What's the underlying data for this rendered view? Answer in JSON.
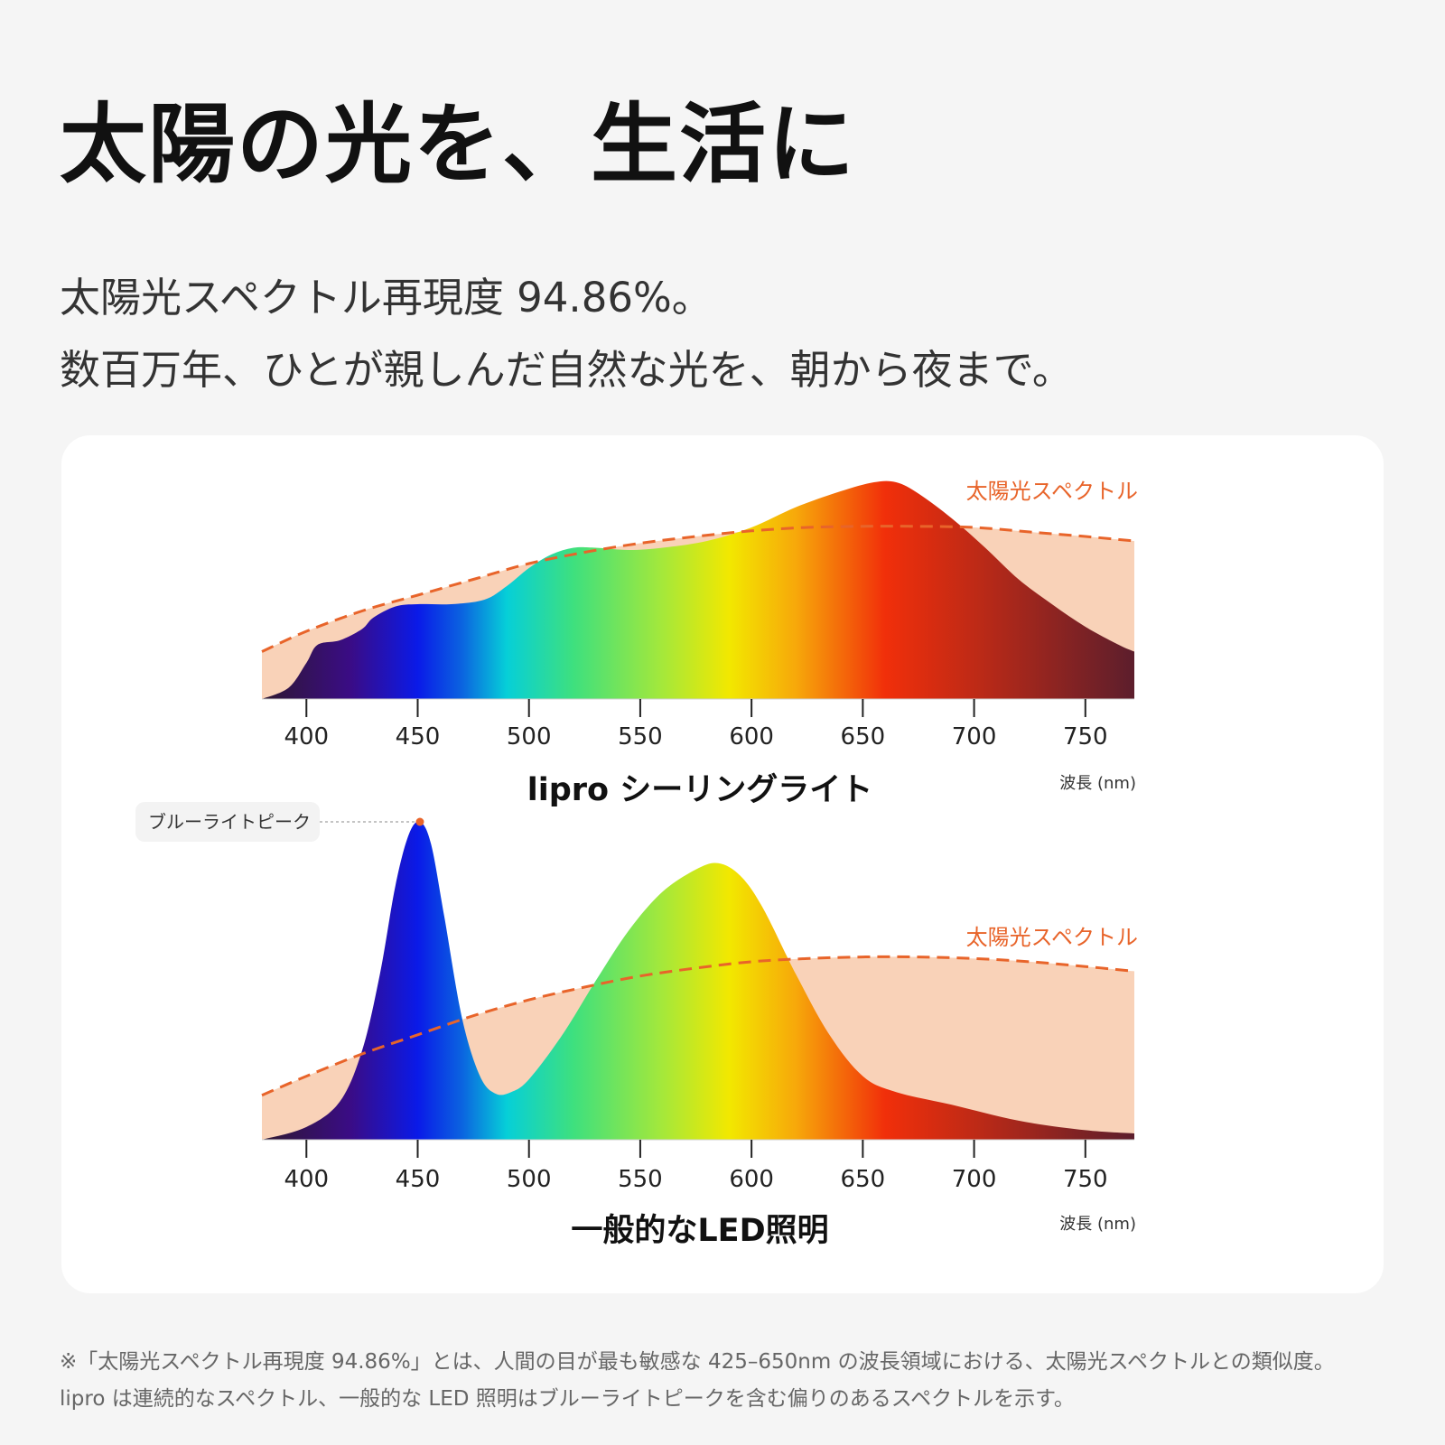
{
  "header": {
    "title": "太陽の光を、生活に",
    "subtitle_line1": "太陽光スペクトル再現度 94.86%。",
    "subtitle_line2": "数百万年、ひとが親しんだ自然な光を、朝から夜まで。"
  },
  "footnote": {
    "line1": "※「太陽光スペクトル再現度 94.86%」とは、人間の目が最も敏感な 425–650nm の波長領域における、太陽光スペクトルとの類似度。",
    "line2": "lipro は連続的なスペクトル、一般的な LED 照明はブルーライトピークを含む偏りのあるスペクトルを示す。"
  },
  "colors": {
    "sun_line": "#e8642a",
    "sun_fill": "#f9d2b8",
    "spectrum_stops": [
      {
        "nm": 380,
        "color": "#2e1830"
      },
      {
        "nm": 420,
        "color": "#3a0c86"
      },
      {
        "nm": 450,
        "color": "#0a1ae8"
      },
      {
        "nm": 470,
        "color": "#0b64e0"
      },
      {
        "nm": 490,
        "color": "#06cfd8"
      },
      {
        "nm": 520,
        "color": "#3ee07e"
      },
      {
        "nm": 560,
        "color": "#a5e83a"
      },
      {
        "nm": 590,
        "color": "#f2e800"
      },
      {
        "nm": 620,
        "color": "#f7a80a"
      },
      {
        "nm": 660,
        "color": "#f12f0a"
      },
      {
        "nm": 700,
        "color": "#bf2a16"
      },
      {
        "nm": 772,
        "color": "#5c1e2c"
      }
    ]
  },
  "chart_data": [
    {
      "type": "area",
      "title": "lipro シーリングライト",
      "xlabel": "波長 (nm)",
      "xlim": [
        380,
        772
      ],
      "ylim": [
        0,
        1
      ],
      "x_ticks": [
        400,
        450,
        500,
        550,
        600,
        650,
        700,
        750
      ],
      "reference_label": "太陽光スペクトル",
      "series": [
        {
          "name": "太陽光スペクトル",
          "x": [
            380,
            400,
            425,
            450,
            475,
            500,
            525,
            550,
            575,
            600,
            625,
            650,
            675,
            700,
            725,
            750,
            772
          ],
          "values": [
            0.21,
            0.3,
            0.39,
            0.46,
            0.53,
            0.6,
            0.65,
            0.69,
            0.72,
            0.745,
            0.76,
            0.765,
            0.765,
            0.76,
            0.74,
            0.72,
            0.7
          ]
        },
        {
          "name": "lipro シーリングライト",
          "x": [
            380,
            392,
            400,
            405,
            415,
            425,
            430,
            440,
            450,
            465,
            480,
            490,
            500,
            510,
            520,
            530,
            545,
            560,
            580,
            600,
            620,
            640,
            655,
            665,
            675,
            690,
            705,
            720,
            735,
            750,
            765,
            772
          ],
          "values": [
            0.0,
            0.05,
            0.16,
            0.24,
            0.26,
            0.31,
            0.36,
            0.41,
            0.42,
            0.42,
            0.44,
            0.5,
            0.58,
            0.64,
            0.67,
            0.67,
            0.66,
            0.67,
            0.7,
            0.76,
            0.85,
            0.92,
            0.96,
            0.96,
            0.91,
            0.8,
            0.67,
            0.53,
            0.42,
            0.32,
            0.24,
            0.21
          ]
        }
      ]
    },
    {
      "type": "area",
      "title": "一般的なLED照明",
      "xlabel": "波長 (nm)",
      "xlim": [
        380,
        772
      ],
      "ylim": [
        0,
        1
      ],
      "x_ticks": [
        400,
        450,
        500,
        550,
        600,
        650,
        700,
        750
      ],
      "reference_label": "太陽光スペクトル",
      "peak_label": "ブルーライトピーク",
      "peak": {
        "x": 451,
        "y": 1.0
      },
      "series": [
        {
          "name": "太陽光スペクトル",
          "x": [
            380,
            400,
            425,
            450,
            475,
            500,
            525,
            550,
            575,
            600,
            625,
            650,
            675,
            700,
            725,
            750,
            772
          ],
          "values": [
            0.14,
            0.2,
            0.27,
            0.33,
            0.39,
            0.44,
            0.48,
            0.515,
            0.54,
            0.56,
            0.57,
            0.575,
            0.575,
            0.57,
            0.56,
            0.545,
            0.53
          ]
        },
        {
          "name": "一般的なLED照明",
          "x": [
            380,
            400,
            415,
            425,
            433,
            440,
            446,
            451,
            456,
            462,
            470,
            478,
            485,
            492,
            500,
            515,
            530,
            545,
            560,
            575,
            585,
            595,
            605,
            620,
            635,
            650,
            665,
            690,
            720,
            750,
            772
          ],
          "values": [
            0.0,
            0.04,
            0.12,
            0.28,
            0.52,
            0.8,
            0.96,
            1.0,
            0.93,
            0.7,
            0.38,
            0.2,
            0.145,
            0.15,
            0.19,
            0.33,
            0.5,
            0.66,
            0.78,
            0.85,
            0.87,
            0.83,
            0.73,
            0.52,
            0.33,
            0.2,
            0.15,
            0.11,
            0.06,
            0.03,
            0.02
          ]
        }
      ]
    }
  ]
}
